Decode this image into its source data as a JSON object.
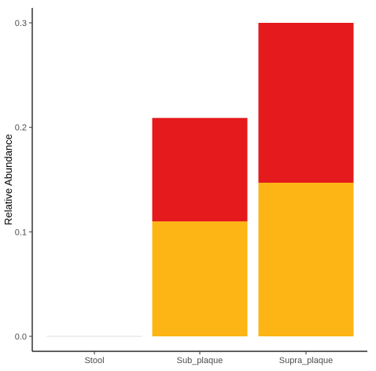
{
  "chart_data": {
    "type": "bar",
    "stacked": true,
    "categories": [
      "Stool",
      "Sub_plaque",
      "Supra_plaque"
    ],
    "series": [
      {
        "values": [
          0.0,
          0.11,
          0.147
        ],
        "color": "#FDB515"
      },
      {
        "values": [
          0.0,
          0.099,
          0.153
        ],
        "color": "#E41A1C"
      }
    ],
    "xlabel": "",
    "ylabel": "Relative Abundance",
    "ylim": [
      0,
      0.3
    ],
    "y_ticks": [
      0.0,
      0.1,
      0.2,
      0.3
    ],
    "y_tick_labels": [
      "0.0",
      "0.1",
      "0.2",
      "0.3"
    ],
    "grid": false,
    "legend": "none"
  }
}
